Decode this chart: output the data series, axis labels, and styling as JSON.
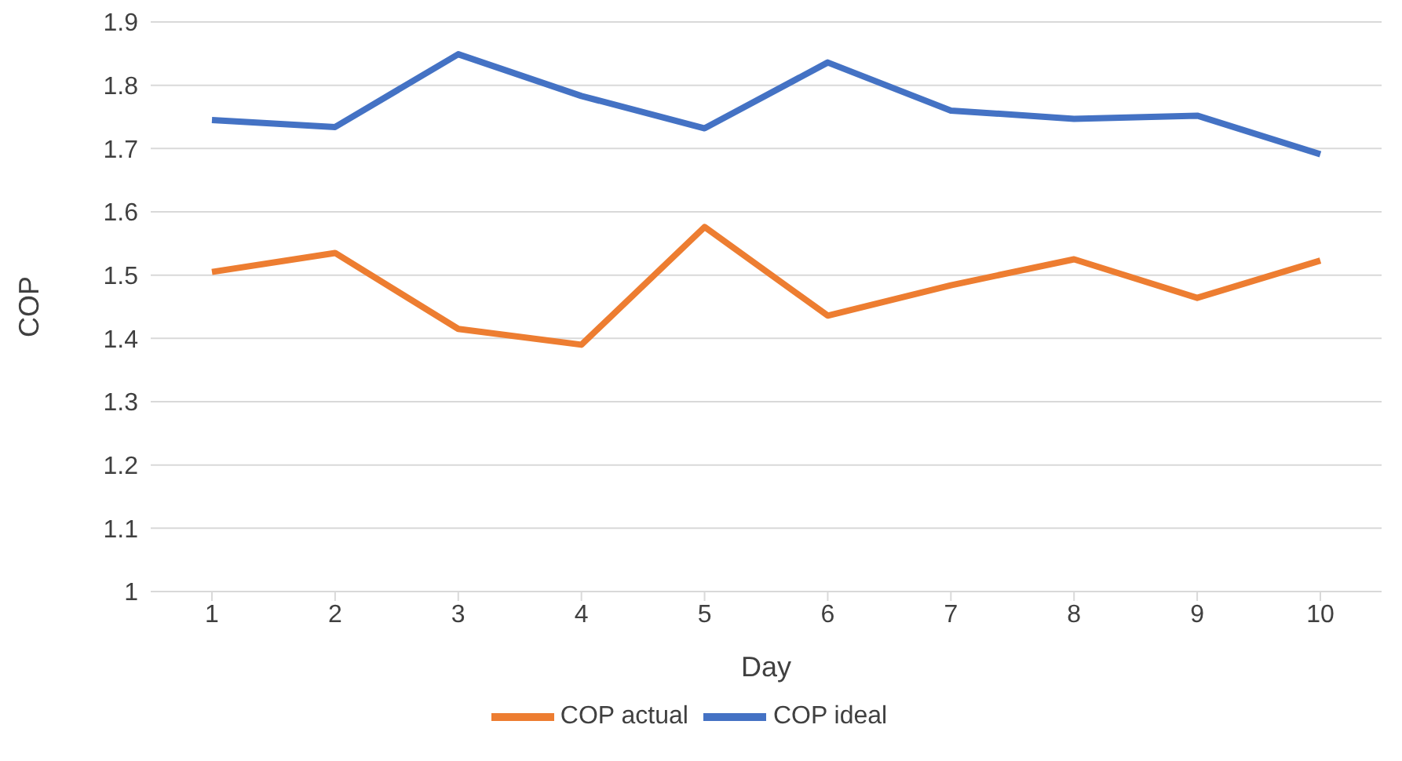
{
  "chart_data": {
    "type": "line",
    "xlabel": "Day",
    "ylabel": "COP",
    "categories": [
      "1",
      "2",
      "3",
      "4",
      "5",
      "6",
      "7",
      "8",
      "9",
      "10"
    ],
    "series": [
      {
        "name": "COP actual",
        "color": "#ed7d31",
        "values": [
          1.505,
          1.535,
          1.415,
          1.39,
          1.576,
          1.436,
          1.484,
          1.525,
          1.464,
          1.523
        ]
      },
      {
        "name": "COP ideal",
        "color": "#4472c4",
        "values": [
          1.745,
          1.734,
          1.849,
          1.783,
          1.732,
          1.836,
          1.76,
          1.747,
          1.752,
          1.691
        ]
      }
    ],
    "ylim": [
      1,
      1.9
    ],
    "yticks": [
      1,
      1.1,
      1.2,
      1.3,
      1.4,
      1.5,
      1.6,
      1.7,
      1.8,
      1.9
    ],
    "grid": "y",
    "legend": "bottom",
    "marker": "none",
    "line_style": "solid"
  }
}
